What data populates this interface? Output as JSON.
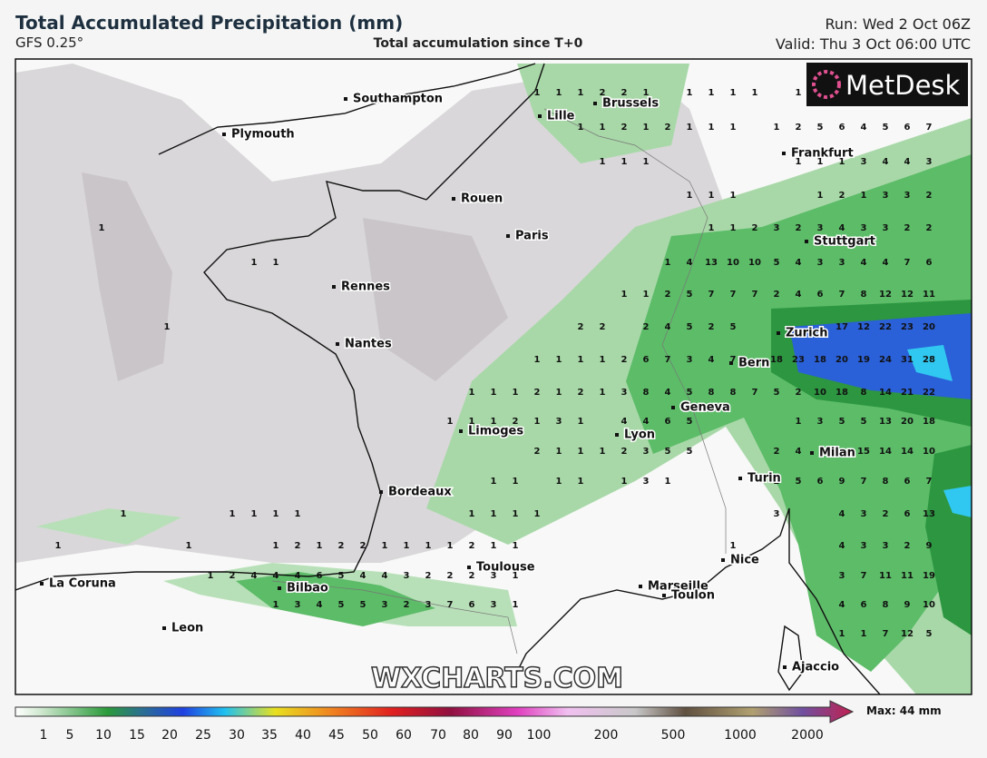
{
  "header": {
    "title": "Total Accumulated Precipitation (mm)",
    "model": "GFS 0.25°",
    "subtitle": "Total accumulation since T+0",
    "run": "Run: Wed 2 Oct 06Z",
    "valid": "Valid: Thu 3 Oct 06:00 UTC"
  },
  "logo": "MetDesk",
  "watermark": "WXCHARTS.COM",
  "cities": [
    "Southampton",
    "Lille",
    "Brussels",
    "Plymouth",
    "Frankfurt",
    "Rouen",
    "Paris",
    "Stuttgart",
    "Rennes",
    "Nantes",
    "Zurich",
    "Bern",
    "Geneva",
    "Limoges",
    "Lyon",
    "Milan",
    "Turin",
    "Bordeaux",
    "Toulouse",
    "Nice",
    "La Coruna",
    "Bilbao",
    "Marseille",
    "Toulon",
    "Leon",
    "Ajaccio"
  ],
  "grid": {
    "rows": [
      [
        null,
        null,
        null,
        null,
        null,
        null,
        null,
        null,
        null,
        null,
        null,
        null,
        null,
        null,
        null,
        null,
        null,
        null,
        null,
        null,
        null,
        null,
        null,
        null,
        1,
        1,
        1,
        2,
        2,
        1,
        null,
        1,
        1,
        1,
        1,
        null,
        1
      ],
      [
        null,
        null,
        null,
        null,
        null,
        null,
        null,
        null,
        null,
        null,
        null,
        null,
        null,
        null,
        null,
        null,
        null,
        null,
        null,
        null,
        null,
        null,
        null,
        null,
        null,
        null,
        1,
        1,
        2,
        1,
        2,
        1,
        1,
        1,
        null,
        1,
        2,
        5,
        6,
        4,
        5,
        6,
        7
      ],
      [
        null,
        null,
        null,
        null,
        null,
        null,
        null,
        null,
        null,
        null,
        null,
        null,
        null,
        null,
        null,
        null,
        null,
        null,
        null,
        null,
        null,
        null,
        null,
        null,
        null,
        null,
        null,
        1,
        1,
        1,
        null,
        null,
        null,
        null,
        null,
        null,
        1,
        1,
        1,
        3,
        4,
        4,
        3
      ],
      [
        null,
        null,
        null,
        null,
        null,
        null,
        null,
        null,
        null,
        null,
        null,
        null,
        null,
        null,
        null,
        null,
        null,
        null,
        null,
        null,
        null,
        null,
        null,
        null,
        null,
        null,
        null,
        null,
        null,
        null,
        null,
        1,
        1,
        1,
        null,
        null,
        null,
        1,
        2,
        1,
        3,
        3,
        2
      ],
      [
        null,
        null,
        null,
        null,
        1,
        null,
        null,
        null,
        null,
        null,
        null,
        null,
        null,
        null,
        null,
        null,
        null,
        null,
        null,
        null,
        null,
        null,
        null,
        null,
        null,
        null,
        null,
        null,
        null,
        null,
        null,
        null,
        1,
        1,
        2,
        3,
        2,
        3,
        4,
        3,
        3,
        2,
        2
      ],
      [
        null,
        null,
        null,
        null,
        null,
        null,
        null,
        null,
        null,
        null,
        null,
        1,
        1,
        null,
        null,
        null,
        null,
        null,
        null,
        null,
        null,
        null,
        null,
        null,
        null,
        null,
        null,
        null,
        null,
        null,
        1,
        4,
        13,
        10,
        10,
        5,
        4,
        3,
        3,
        4,
        4,
        7,
        6
      ],
      [
        null,
        null,
        null,
        null,
        null,
        null,
        null,
        null,
        null,
        null,
        null,
        null,
        null,
        null,
        null,
        null,
        null,
        null,
        null,
        null,
        null,
        null,
        null,
        null,
        null,
        null,
        null,
        null,
        1,
        1,
        2,
        5,
        7,
        7,
        7,
        2,
        4,
        6,
        7,
        8,
        12,
        12,
        11
      ],
      [
        null,
        null,
        null,
        null,
        null,
        null,
        null,
        1,
        null,
        null,
        null,
        null,
        null,
        null,
        null,
        null,
        null,
        null,
        null,
        null,
        null,
        null,
        null,
        null,
        null,
        null,
        2,
        2,
        null,
        2,
        4,
        5,
        2,
        5,
        null,
        null,
        null,
        null,
        17,
        12,
        22,
        23,
        20
      ],
      [
        null,
        null,
        null,
        null,
        null,
        null,
        null,
        null,
        null,
        null,
        null,
        null,
        null,
        null,
        null,
        null,
        null,
        null,
        null,
        null,
        null,
        null,
        null,
        null,
        1,
        1,
        1,
        1,
        2,
        6,
        7,
        3,
        4,
        7,
        null,
        18,
        23,
        18,
        20,
        19,
        24,
        31,
        28
      ],
      [
        null,
        null,
        null,
        null,
        null,
        null,
        null,
        null,
        null,
        null,
        null,
        null,
        null,
        null,
        null,
        null,
        null,
        null,
        null,
        null,
        null,
        1,
        1,
        1,
        2,
        1,
        2,
        1,
        3,
        8,
        4,
        5,
        8,
        8,
        7,
        5,
        2,
        10,
        18,
        8,
        14,
        21,
        22
      ],
      [
        null,
        null,
        null,
        null,
        null,
        null,
        null,
        null,
        null,
        null,
        null,
        null,
        null,
        null,
        null,
        null,
        null,
        null,
        null,
        null,
        1,
        1,
        1,
        2,
        1,
        3,
        1,
        null,
        4,
        4,
        6,
        5,
        null,
        null,
        null,
        null,
        1,
        3,
        5,
        5,
        13,
        20,
        18
      ],
      [
        null,
        null,
        null,
        null,
        null,
        null,
        null,
        null,
        null,
        null,
        null,
        null,
        null,
        null,
        null,
        null,
        null,
        null,
        null,
        null,
        null,
        null,
        null,
        null,
        2,
        1,
        1,
        1,
        2,
        3,
        5,
        5,
        null,
        null,
        null,
        2,
        4,
        null,
        null,
        15,
        14,
        14,
        10
      ],
      [
        null,
        null,
        null,
        null,
        null,
        null,
        null,
        null,
        null,
        null,
        null,
        null,
        null,
        null,
        null,
        null,
        null,
        null,
        null,
        null,
        null,
        null,
        1,
        1,
        null,
        1,
        1,
        null,
        1,
        3,
        1,
        null,
        null,
        null,
        null,
        2,
        5,
        6,
        9,
        7,
        8,
        6,
        7
      ],
      [
        null,
        null,
        null,
        null,
        null,
        1,
        null,
        null,
        null,
        null,
        1,
        1,
        1,
        1,
        null,
        null,
        null,
        null,
        null,
        null,
        null,
        1,
        1,
        1,
        1,
        null,
        null,
        null,
        null,
        null,
        null,
        null,
        null,
        null,
        null,
        3,
        null,
        null,
        4,
        3,
        2,
        6,
        13
      ],
      [
        null,
        null,
        1,
        null,
        null,
        null,
        null,
        null,
        1,
        null,
        null,
        null,
        1,
        2,
        1,
        2,
        2,
        1,
        1,
        1,
        1,
        2,
        1,
        1,
        null,
        null,
        null,
        null,
        null,
        null,
        null,
        null,
        null,
        1,
        null,
        null,
        null,
        null,
        4,
        3,
        3,
        2,
        9
      ],
      [
        null,
        null,
        null,
        null,
        null,
        null,
        null,
        null,
        null,
        1,
        2,
        4,
        4,
        4,
        6,
        5,
        4,
        4,
        3,
        2,
        2,
        2,
        3,
        1,
        null,
        null,
        null,
        null,
        null,
        null,
        null,
        null,
        null,
        null,
        null,
        null,
        null,
        null,
        3,
        7,
        11,
        11,
        19
      ],
      [
        null,
        null,
        null,
        null,
        null,
        null,
        null,
        null,
        null,
        null,
        null,
        null,
        1,
        3,
        4,
        5,
        5,
        3,
        2,
        3,
        7,
        6,
        3,
        1,
        null,
        null,
        null,
        null,
        null,
        null,
        null,
        null,
        null,
        null,
        null,
        null,
        null,
        null,
        4,
        6,
        8,
        9,
        10
      ],
      [
        null,
        null,
        null,
        null,
        null,
        null,
        null,
        null,
        null,
        null,
        null,
        null,
        null,
        null,
        null,
        null,
        null,
        null,
        null,
        null,
        null,
        null,
        null,
        null,
        null,
        null,
        null,
        null,
        null,
        null,
        null,
        null,
        null,
        null,
        null,
        null,
        null,
        null,
        1,
        1,
        7,
        12,
        5
      ]
    ]
  },
  "colorbar": {
    "labels": [
      1,
      5,
      10,
      15,
      20,
      25,
      30,
      35,
      40,
      45,
      50,
      60,
      70,
      80,
      90,
      100,
      200,
      500,
      1000,
      2000
    ],
    "max": "Max: 44 mm"
  }
}
